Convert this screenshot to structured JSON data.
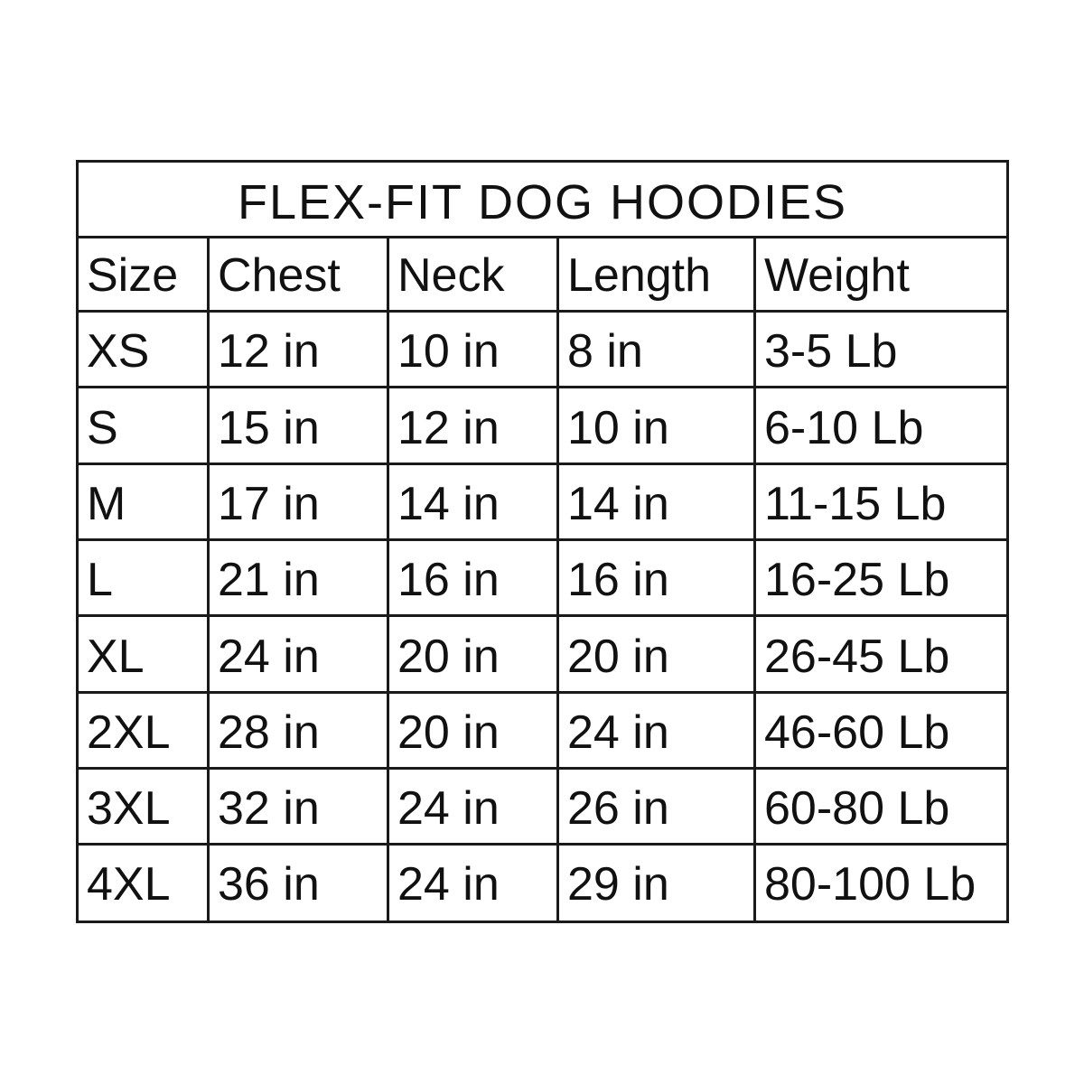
{
  "title": "FLEX-FIT DOG HOODIES",
  "headers": [
    "Size",
    "Chest",
    "Neck",
    "Length",
    "Weight"
  ],
  "rows": [
    [
      "XS",
      "12 in",
      "10 in",
      "8 in",
      "3-5 Lb"
    ],
    [
      "S",
      "15 in",
      "12 in",
      "10 in",
      "6-10 Lb"
    ],
    [
      "M",
      "17 in",
      "14 in",
      "14 in",
      "11-15 Lb"
    ],
    [
      "L",
      "21 in",
      "16 in",
      "16 in",
      "16-25 Lb"
    ],
    [
      "XL",
      "24 in",
      "20 in",
      "20 in",
      "26-45 Lb"
    ],
    [
      "2XL",
      "28 in",
      "20 in",
      "24 in",
      "46-60 Lb"
    ],
    [
      "3XL",
      "32 in",
      "24 in",
      "26 in",
      "60-80 Lb"
    ],
    [
      "4XL",
      "36 in",
      "24 in",
      "29 in",
      "80-100 Lb"
    ]
  ]
}
